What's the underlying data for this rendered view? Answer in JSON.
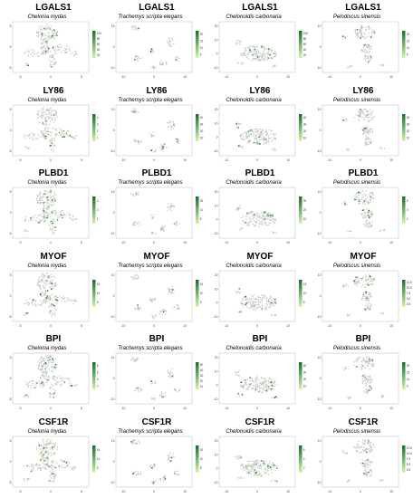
{
  "species": [
    "Chelonia mydas",
    "Trachemys scripta elegans",
    "Chelonoidis carbonaria",
    "Pelodiscus sinensis"
  ],
  "colors": {
    "background_cells": "#c8c8c8",
    "low": "#d9f0b0",
    "high": "#1b6b32"
  },
  "chart_data": [
    {
      "type": "scatter",
      "gene": "LGALS1",
      "species": "Chelonia mydas",
      "legend_ticks": [
        "20",
        "40",
        "60",
        "80",
        "100"
      ]
    },
    {
      "type": "scatter",
      "gene": "LGALS1",
      "species": "Trachemys scripta elegans",
      "legend_ticks": [
        "5",
        "10",
        "15",
        "20"
      ]
    },
    {
      "type": "scatter",
      "gene": "LGALS1",
      "species": "Chelonoidis carbonaria",
      "legend_ticks": [
        "20",
        "40",
        "60",
        "80",
        "100"
      ]
    },
    {
      "type": "scatter",
      "gene": "LGALS1",
      "species": "Pelodiscus sinensis",
      "legend_ticks": [
        "5",
        "10",
        "15",
        "20"
      ]
    },
    {
      "type": "scatter",
      "gene": "LY86",
      "species": "Chelonia mydas",
      "legend_ticks": [
        "1",
        "2",
        "3",
        "4"
      ]
    },
    {
      "type": "scatter",
      "gene": "LY86",
      "species": "Trachemys scripta elegans",
      "legend_ticks": [
        "10",
        "20",
        "30",
        "40"
      ]
    },
    {
      "type": "scatter",
      "gene": "LY86",
      "species": "Chelonoidis carbonaria",
      "legend_ticks": [
        "10",
        "20",
        "30",
        "40"
      ]
    },
    {
      "type": "scatter",
      "gene": "LY86",
      "species": "Pelodiscus sinensis",
      "legend_ticks": [
        "10",
        "20",
        "30",
        "40"
      ]
    },
    {
      "type": "scatter",
      "gene": "PLBD1",
      "species": "Chelonia mydas",
      "legend_ticks": [
        "1",
        "2",
        "3"
      ]
    },
    {
      "type": "scatter",
      "gene": "PLBD1",
      "species": "Trachemys scripta elegans",
      "legend_ticks": [
        "5",
        "10",
        "15"
      ]
    },
    {
      "type": "scatter",
      "gene": "PLBD1",
      "species": "Chelonoidis carbonaria",
      "legend_ticks": [
        "10",
        "20",
        "30"
      ]
    },
    {
      "type": "scatter",
      "gene": "PLBD1",
      "species": "Pelodiscus sinensis",
      "legend_ticks": [
        "2",
        "4",
        "6"
      ]
    },
    {
      "type": "scatter",
      "gene": "MYOF",
      "species": "Chelonia mydas",
      "legend_ticks": [
        "5",
        "10",
        "15"
      ]
    },
    {
      "type": "scatter",
      "gene": "MYOF",
      "species": "Trachemys scripta elegans",
      "legend_ticks": [
        "5",
        "10",
        "15"
      ]
    },
    {
      "type": "scatter",
      "gene": "MYOF",
      "species": "Chelonoidis carbonaria",
      "legend_ticks": [
        "5",
        "10",
        "15"
      ]
    },
    {
      "type": "scatter",
      "gene": "MYOF",
      "species": "Pelodiscus sinensis",
      "legend_ticks": [
        "2.5",
        "5.0",
        "7.5",
        "10.0",
        "12.5"
      ]
    },
    {
      "type": "scatter",
      "gene": "BPI",
      "species": "Chelonia mydas",
      "legend_ticks": [
        "2",
        "4",
        "6",
        "8"
      ]
    },
    {
      "type": "scatter",
      "gene": "BPI",
      "species": "Trachemys scripta elegans",
      "legend_ticks": [
        "10",
        "20",
        "30",
        "40",
        "50"
      ]
    },
    {
      "type": "scatter",
      "gene": "BPI",
      "species": "Chelonoidis carbonaria",
      "legend_ticks": [
        "10",
        "20",
        "30",
        "40"
      ]
    },
    {
      "type": "scatter",
      "gene": "BPI",
      "species": "Pelodiscus sinensis",
      "legend_ticks": [
        "5",
        "10",
        "15",
        "20"
      ]
    },
    {
      "type": "scatter",
      "gene": "CSF1R",
      "species": "Chelonia mydas",
      "legend_ticks": [
        "5",
        "10",
        "15"
      ]
    },
    {
      "type": "scatter",
      "gene": "CSF1R",
      "species": "Trachemys scripta elegans",
      "legend_ticks": [
        "5",
        "10",
        "15"
      ]
    },
    {
      "type": "scatter",
      "gene": "CSF1R",
      "species": "Chelonoidis carbonaria",
      "legend_ticks": [
        "2",
        "4",
        "6"
      ]
    },
    {
      "type": "scatter",
      "gene": "CSF1R",
      "species": "Pelodiscus sinensis",
      "legend_ticks": [
        "2.5",
        "5.0",
        "7.5",
        "10.0",
        "12.5"
      ]
    }
  ],
  "axes": {
    "Chelonia mydas": {
      "x_ticks": [
        "-5",
        "0",
        "5"
      ],
      "y_ticks": [
        "5",
        "0",
        "-5"
      ]
    },
    "Trachemys scripta elegans": {
      "x_ticks": [
        "-10",
        "0",
        "10"
      ],
      "y_ticks": [
        "10",
        "0",
        "-10"
      ]
    },
    "Chelonoidis carbonaria": {
      "x_ticks": [
        "-10",
        "0",
        "10"
      ],
      "y_ticks": [
        "20",
        "10",
        "0",
        "-10"
      ]
    },
    "Pelodiscus sinensis": {
      "x_ticks": [
        "-10",
        "0",
        "10"
      ],
      "y_ticks": [
        "10",
        "0",
        "-10"
      ]
    }
  }
}
